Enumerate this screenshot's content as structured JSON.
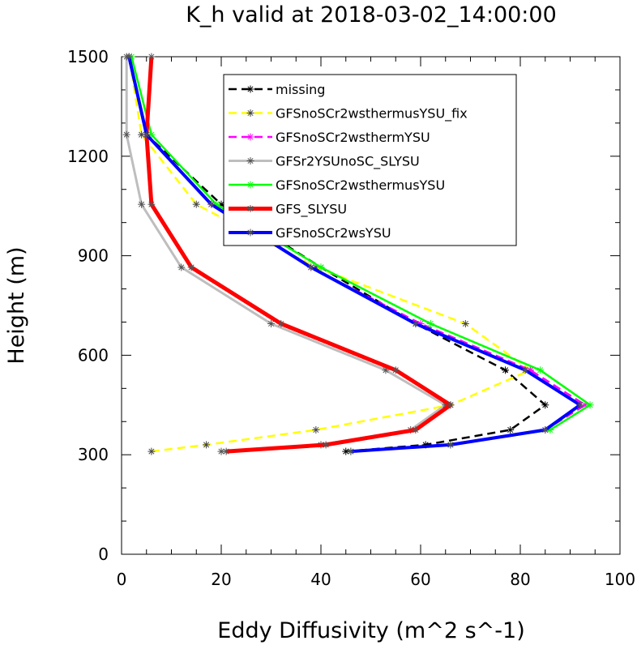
{
  "chart_data": {
    "type": "line",
    "title": "K_h valid at 2018-03-02_14:00:00",
    "xlabel": "Eddy Diffusivity (m^2 s^-1)",
    "ylabel": "Height (m)",
    "xlim": [
      0,
      100
    ],
    "ylim": [
      0,
      1500
    ],
    "xticks": [
      "0",
      "20",
      "40",
      "60",
      "80",
      "100"
    ],
    "yticks": [
      "0",
      "300",
      "600",
      "900",
      "1200",
      "1500"
    ],
    "legend_position": "top-right",
    "series": [
      {
        "name": "missing",
        "color": "#000000",
        "dash": "dashed",
        "width": 2.5,
        "points": [
          [
            45,
            310
          ],
          [
            61,
            330
          ],
          [
            78,
            375
          ],
          [
            85,
            450
          ],
          [
            77,
            555
          ],
          [
            59,
            695
          ],
          [
            40,
            865
          ],
          [
            20,
            1055
          ],
          [
            5,
            1265
          ],
          [
            1.5,
            1500
          ]
        ]
      },
      {
        "name": "GFSnoSCr2wsthermusYSU_fix",
        "color": "#ffff00",
        "dash": "dashed",
        "width": 2.5,
        "points": [
          [
            6,
            310
          ],
          [
            17,
            330
          ],
          [
            39,
            375
          ],
          [
            66,
            450
          ],
          [
            82,
            555
          ],
          [
            69,
            695
          ],
          [
            39,
            865
          ],
          [
            15,
            1055
          ],
          [
            4,
            1265
          ],
          [
            1.5,
            1500
          ]
        ]
      },
      {
        "name": "GFSnoSCr2wsthermYSU",
        "color": "#ff00ff",
        "dash": "dashed",
        "width": 2.5,
        "points": [
          [
            46,
            310
          ],
          [
            66,
            330
          ],
          [
            85,
            375
          ],
          [
            93,
            450
          ],
          [
            82,
            555
          ],
          [
            60,
            695
          ],
          [
            38,
            865
          ],
          [
            18,
            1055
          ],
          [
            5,
            1265
          ],
          [
            1.5,
            1500
          ]
        ]
      },
      {
        "name": "GFSr2YSUnoSC_SLYSU",
        "color": "#bebebe",
        "dash": "solid",
        "width": 3,
        "points": [
          [
            20,
            310
          ],
          [
            40,
            330
          ],
          [
            58,
            375
          ],
          [
            65,
            450
          ],
          [
            53,
            555
          ],
          [
            30,
            695
          ],
          [
            12,
            865
          ],
          [
            4,
            1055
          ],
          [
            1,
            1265
          ],
          [
            1,
            1500
          ]
        ]
      },
      {
        "name": "GFSnoSCr2wsthermusYSU",
        "color": "#00ff00",
        "dash": "solid",
        "width": 2.5,
        "points": [
          [
            46,
            310
          ],
          [
            66,
            330
          ],
          [
            86,
            375
          ],
          [
            94,
            450
          ],
          [
            84,
            555
          ],
          [
            62,
            695
          ],
          [
            40,
            865
          ],
          [
            19,
            1055
          ],
          [
            6,
            1265
          ],
          [
            2,
            1500
          ]
        ]
      },
      {
        "name": "GFS_SLYSU",
        "color": "#ff0000",
        "dash": "solid",
        "width": 5,
        "points": [
          [
            21,
            310
          ],
          [
            41,
            330
          ],
          [
            59,
            375
          ],
          [
            66,
            450
          ],
          [
            55,
            555
          ],
          [
            32,
            695
          ],
          [
            14,
            865
          ],
          [
            6,
            1055
          ],
          [
            5,
            1265
          ],
          [
            6,
            1500
          ]
        ]
      },
      {
        "name": "GFSnoSCr2wsYSU",
        "color": "#0000ff",
        "dash": "solid",
        "width": 4,
        "points": [
          [
            46,
            310
          ],
          [
            66,
            330
          ],
          [
            85,
            375
          ],
          [
            92,
            450
          ],
          [
            81,
            555
          ],
          [
            59,
            695
          ],
          [
            38,
            865
          ],
          [
            18,
            1055
          ],
          [
            5,
            1265
          ],
          [
            1.5,
            1500
          ]
        ]
      }
    ]
  }
}
